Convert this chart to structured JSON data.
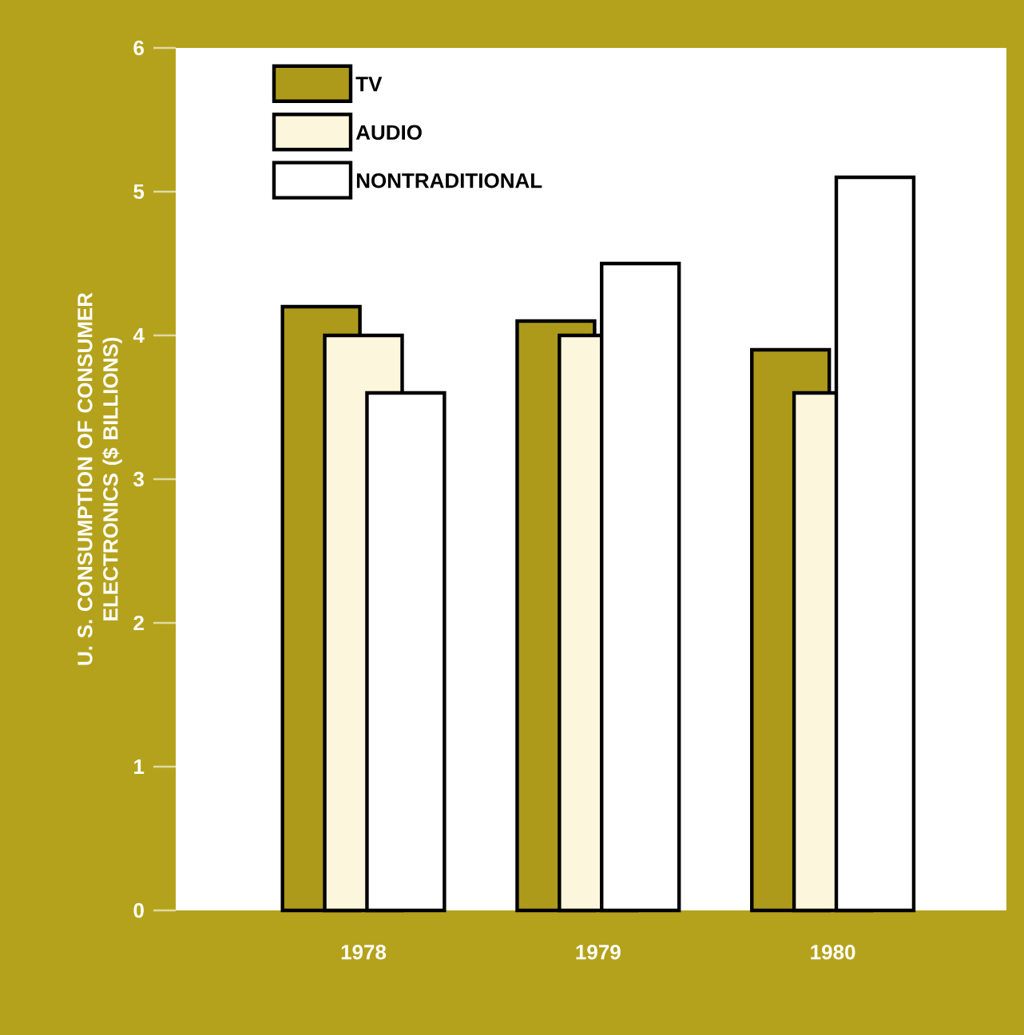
{
  "chart_data": {
    "type": "bar",
    "ylabel": "U. S. CONSUMPTION OF CONSUMER ELECTRONICS ($ BILLIONS)",
    "categories": [
      "1978",
      "1979",
      "1980"
    ],
    "series": [
      {
        "name": "TV",
        "color": "#ad9a1a",
        "values": [
          4.2,
          4.1,
          3.9
        ]
      },
      {
        "name": "AUDIO",
        "color": "#fbf6dc",
        "values": [
          4.0,
          4.0,
          3.6
        ]
      },
      {
        "name": "NONTRADITIONAL",
        "color": "#ffffff",
        "values": [
          3.6,
          4.5,
          5.1
        ]
      }
    ],
    "ylim": [
      0,
      6
    ],
    "yticks": [
      0,
      1,
      2,
      3,
      4,
      5,
      6
    ],
    "legend": "top left"
  }
}
